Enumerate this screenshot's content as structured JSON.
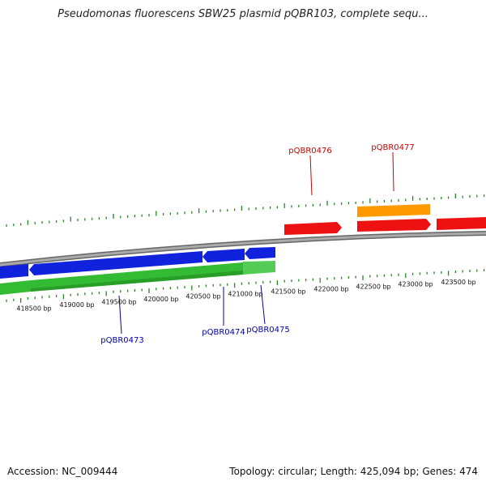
{
  "title": "Pseudomonas fluorescens SBW25 plasmid pQBR103, complete sequ...",
  "footer": {
    "accession": "Accession: NC_009444",
    "summary": "Topology: circular; Length: 425,094 bp; Genes: 474"
  },
  "colors": {
    "forward_gene": "#ee1111",
    "forward_gene_alt": "#ff9900",
    "reverse_gene": "#1122dd",
    "reverse_cds": "#33bb33",
    "backbone": "#888888",
    "tick": "#228822",
    "forward_label": "#cc0000",
    "reverse_label": "#0000aa"
  },
  "scale_labels": [
    "418500 bp",
    "419000 bp",
    "419500 bp",
    "420000 bp",
    "420500 bp",
    "421000 bp",
    "421500 bp",
    "422000 bp",
    "422500 bp",
    "423000 bp",
    "423500 bp"
  ],
  "gene_labels": {
    "forward": [
      "pQBR0476",
      "pQBR0477"
    ],
    "reverse": [
      "pQBR0473",
      "pQBR0474",
      "pQBR0475"
    ]
  }
}
